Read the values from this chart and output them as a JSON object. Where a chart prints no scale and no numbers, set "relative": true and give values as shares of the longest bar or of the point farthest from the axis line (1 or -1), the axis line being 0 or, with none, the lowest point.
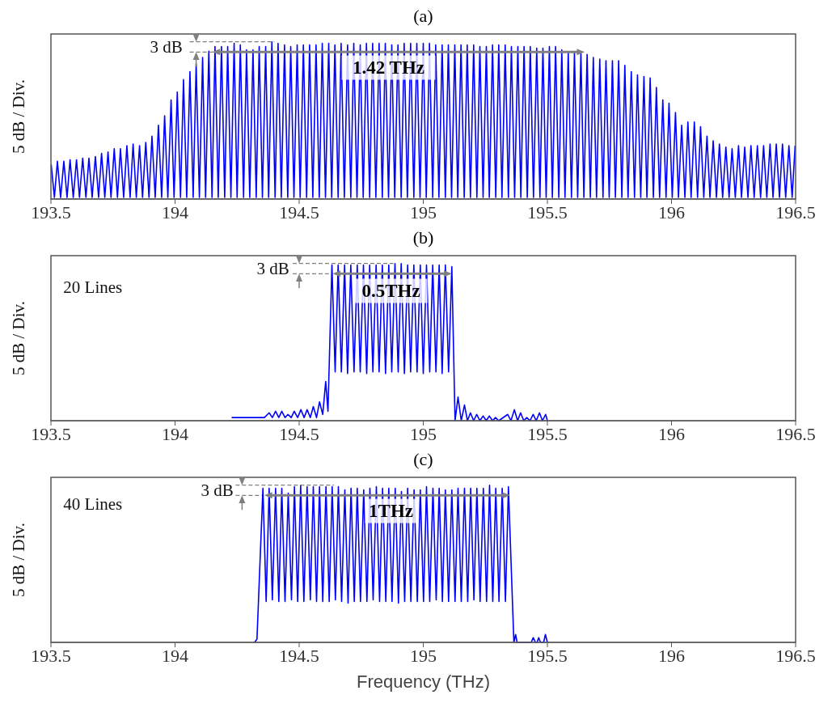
{
  "chart_data": [
    {
      "type": "line",
      "title": "(a)",
      "ylabel": "5 dB / Div.",
      "relative": true,
      "color": "#0000ff",
      "xlim": [
        193.5,
        196.5
      ],
      "xticks": [
        193.5,
        194,
        194.5,
        195,
        195.5,
        196,
        196.5
      ],
      "tick_labels": "x",
      "annotations": [
        "3 dB",
        "1.42 THz"
      ],
      "x": [
        193.501,
        193.514,
        193.526,
        193.539,
        193.552,
        193.565,
        193.577,
        193.59,
        193.603,
        193.615,
        193.628,
        193.641,
        193.653,
        193.666,
        193.679,
        193.692,
        193.704,
        193.717,
        193.73,
        193.742,
        193.755,
        193.768,
        193.78,
        193.793,
        193.806,
        193.819,
        193.831,
        193.844,
        193.857,
        193.869,
        193.882,
        193.895,
        193.907,
        193.92,
        193.933,
        193.946,
        193.958,
        193.971,
        193.984,
        193.996,
        194.009,
        194.022,
        194.034,
        194.047,
        194.06,
        194.073,
        194.085,
        194.098,
        194.111,
        194.123,
        194.136,
        194.149,
        194.161,
        194.174,
        194.187,
        194.2,
        194.212,
        194.225,
        194.238,
        194.25,
        194.263,
        194.276,
        194.288,
        194.301,
        194.314,
        194.327,
        194.339,
        194.352,
        194.365,
        194.377,
        194.39,
        194.403,
        194.415,
        194.428,
        194.441,
        194.454,
        194.466,
        194.479,
        194.492,
        194.504,
        194.517,
        194.53,
        194.542,
        194.555,
        194.568,
        194.581,
        194.593,
        194.606,
        194.619,
        194.631,
        194.644,
        194.657,
        194.669,
        194.682,
        194.695,
        194.708,
        194.72,
        194.733,
        194.746,
        194.758,
        194.771,
        194.784,
        194.796,
        194.809,
        194.822,
        194.835,
        194.847,
        194.86,
        194.873,
        194.885,
        194.898,
        194.911,
        194.923,
        194.936,
        194.949,
        194.962,
        194.974,
        194.987,
        195,
        195.012,
        195.025,
        195.038,
        195.05,
        195.063,
        195.076,
        195.089,
        195.101,
        195.114,
        195.127,
        195.139,
        195.152,
        195.165,
        195.177,
        195.19,
        195.203,
        195.216,
        195.228,
        195.241,
        195.254,
        195.266,
        195.279,
        195.292,
        195.304,
        195.317,
        195.33,
        195.343,
        195.355,
        195.368,
        195.381,
        195.393,
        195.406,
        195.419,
        195.431,
        195.444,
        195.457,
        195.47,
        195.482,
        195.495,
        195.508,
        195.52,
        195.533,
        195.546,
        195.558,
        195.571,
        195.584,
        195.597,
        195.609,
        195.622,
        195.635,
        195.647,
        195.66,
        195.673,
        195.685,
        195.698,
        195.711,
        195.724,
        195.736,
        195.749,
        195.762,
        195.774,
        195.787,
        195.8,
        195.812,
        195.825,
        195.838,
        195.851,
        195.863,
        195.876,
        195.889,
        195.901,
        195.914,
        195.927,
        195.939,
        195.952,
        195.965,
        195.978,
        195.99,
        196.003,
        196.016,
        196.028,
        196.041,
        196.054,
        196.066,
        196.079,
        196.092,
        196.105,
        196.117,
        196.13,
        196.143,
        196.155,
        196.168,
        196.181,
        196.193,
        196.206,
        196.219,
        196.232,
        196.244,
        196.257,
        196.27,
        196.282,
        196.295,
        196.308,
        196.32,
        196.333,
        196.346,
        196.359,
        196.371,
        196.384,
        196.397,
        196.409,
        196.422,
        196.435,
        196.447,
        196.46,
        196.473,
        196.486,
        196.498
      ],
      "values": [
        0.22,
        0.01,
        0.24,
        0.01,
        0.24,
        0.01,
        0.25,
        0.01,
        0.25,
        0.01,
        0.26,
        0.01,
        0.26,
        0.01,
        0.27,
        0.01,
        0.29,
        0.01,
        0.3,
        0.01,
        0.32,
        0.01,
        0.32,
        0.01,
        0.34,
        0.01,
        0.35,
        0.01,
        0.34,
        0.01,
        0.36,
        0.01,
        0.4,
        0.01,
        0.47,
        0.01,
        0.53,
        0.01,
        0.63,
        0.01,
        0.68,
        0.01,
        0.76,
        0.01,
        0.81,
        0.01,
        0.86,
        0.01,
        0.9,
        0.01,
        0.94,
        0.01,
        0.97,
        0.01,
        0.97,
        0.01,
        0.97,
        0.01,
        0.99,
        0.01,
        0.98,
        0.01,
        0.95,
        0.01,
        0.95,
        0.01,
        0.97,
        0.01,
        0.97,
        0.01,
        1,
        0.01,
        0.99,
        0.01,
        0.98,
        0.01,
        0.97,
        0.01,
        0.98,
        0.01,
        0.98,
        0.01,
        0.98,
        0.01,
        0.98,
        0.01,
        0.99,
        0.01,
        0.99,
        0.01,
        0.98,
        0.01,
        0.99,
        0.01,
        0.98,
        0.01,
        0.99,
        0.01,
        0.98,
        0.01,
        0.99,
        0.01,
        0.99,
        0.01,
        0.99,
        0.01,
        0.99,
        0.01,
        0.98,
        0.01,
        0.98,
        0.01,
        0.99,
        0.01,
        0.99,
        0.01,
        0.99,
        0.01,
        0.99,
        0.01,
        0.99,
        0.01,
        0.98,
        0.01,
        0.98,
        0.01,
        0.98,
        0.01,
        0.98,
        0.01,
        0.98,
        0.01,
        0.98,
        0.01,
        0.98,
        0.01,
        0.97,
        0.01,
        0.97,
        0.01,
        0.98,
        0.01,
        0.98,
        0.01,
        0.98,
        0.01,
        0.97,
        0.01,
        0.97,
        0.01,
        0.97,
        0.01,
        0.97,
        0.01,
        0.96,
        0.01,
        0.96,
        0.01,
        0.97,
        0.01,
        0.97,
        0.01,
        0.95,
        0.01,
        0.93,
        0.01,
        0.93,
        0.01,
        0.93,
        0.01,
        0.92,
        0.01,
        0.9,
        0.01,
        0.89,
        0.01,
        0.88,
        0.01,
        0.88,
        0.01,
        0.88,
        0.01,
        0.85,
        0.01,
        0.81,
        0.01,
        0.79,
        0.01,
        0.78,
        0.01,
        0.77,
        0.01,
        0.71,
        0.01,
        0.63,
        0.01,
        0.61,
        0.01,
        0.55,
        0.01,
        0.47,
        0.01,
        0.49,
        0.01,
        0.49,
        0.01,
        0.46,
        0.01,
        0.4,
        0.01,
        0.37,
        0.01,
        0.35,
        0.01,
        0.33,
        0.01,
        0.32,
        0.01,
        0.34,
        0.01,
        0.33,
        0.01,
        0.34,
        0.01,
        0.34,
        0.01,
        0.34,
        0.01,
        0.35,
        0.01,
        0.35,
        0.01,
        0.35,
        0.01,
        0.34,
        0.01,
        0.34
      ]
    },
    {
      "type": "line",
      "title": "(b)",
      "ylabel": "5 dB / Div.",
      "relative": true,
      "color": "#0000ff",
      "xlim": [
        193.5,
        196.5
      ],
      "xticks": [
        193.5,
        194,
        194.5,
        195,
        195.5,
        196,
        196.5
      ],
      "tick_labels": "x",
      "annotations": [
        "20 Lines",
        "3 dB",
        "0.5THz"
      ],
      "x": [
        194.228,
        194.36,
        194.379,
        194.392,
        194.405,
        194.418,
        194.43,
        194.443,
        194.455,
        194.468,
        194.48,
        194.494,
        194.507,
        194.52,
        194.532,
        194.545,
        194.557,
        194.57,
        194.582,
        194.595,
        194.607,
        194.616,
        194.632,
        194.645,
        194.657,
        194.67,
        194.683,
        194.695,
        194.708,
        194.721,
        194.734,
        194.746,
        194.759,
        194.772,
        194.784,
        194.797,
        194.81,
        194.822,
        194.835,
        194.848,
        194.861,
        194.873,
        194.886,
        194.899,
        194.911,
        194.924,
        194.937,
        194.949,
        194.962,
        194.975,
        194.988,
        195,
        195.013,
        195.026,
        195.038,
        195.051,
        195.064,
        195.076,
        195.089,
        195.102,
        195.115,
        195.128,
        195.14,
        195.153,
        195.166,
        195.178,
        195.19,
        195.203,
        195.215,
        195.228,
        195.241,
        195.254,
        195.266,
        195.279,
        195.291,
        195.304,
        195.34,
        195.353,
        195.367,
        195.38,
        195.392,
        195.405,
        195.417,
        195.43,
        195.443,
        195.455,
        195.468,
        195.48,
        195.493,
        195.5
      ],
      "values": [
        0.02,
        0.02,
        0.05,
        0.02,
        0.06,
        0.02,
        0.06,
        0.02,
        0.04,
        0.02,
        0.06,
        0.02,
        0.07,
        0.02,
        0.07,
        0.02,
        0.09,
        0.02,
        0.12,
        0.04,
        0.25,
        0.06,
        0.99,
        0.31,
        0.99,
        0.31,
        0.99,
        0.3,
        0.99,
        0.31,
        0.99,
        0.31,
        0.99,
        0.3,
        0.99,
        0.31,
        0.99,
        0.31,
        0.99,
        0.3,
        0.99,
        0.31,
        1,
        0.31,
        1,
        0.3,
        0.99,
        0.31,
        0.99,
        0.31,
        0.99,
        0.3,
        0.99,
        0.31,
        0.99,
        0.31,
        0.99,
        0.3,
        0.99,
        0.31,
        0.98,
        0,
        0.15,
        0,
        0.1,
        0,
        0.05,
        0,
        0.04,
        0,
        0.03,
        0,
        0.03,
        0,
        0.02,
        0,
        0.04,
        0,
        0.07,
        0,
        0.05,
        0,
        0.02,
        0,
        0.04,
        0,
        0.05,
        0,
        0.04,
        0
      ]
    },
    {
      "type": "line",
      "title": "(c)",
      "xlabel": "Frequency (THz)",
      "ylabel": "5 dB / Div.",
      "relative": true,
      "color": "#0000ff",
      "xlim": [
        193.5,
        196.5
      ],
      "xticks": [
        193.5,
        194,
        194.5,
        195,
        195.5,
        196,
        196.5
      ],
      "tick_labels": "x",
      "annotations": [
        "40 Lines",
        "3 dB",
        "1THz"
      ],
      "x": [
        194.32,
        194.33,
        194.354,
        194.367,
        194.379,
        194.392,
        194.405,
        194.418,
        194.43,
        194.443,
        194.456,
        194.469,
        194.481,
        194.494,
        194.506,
        194.519,
        194.532,
        194.545,
        194.557,
        194.57,
        194.582,
        194.595,
        194.608,
        194.621,
        194.633,
        194.646,
        194.658,
        194.671,
        194.684,
        194.697,
        194.709,
        194.722,
        194.734,
        194.747,
        194.76,
        194.773,
        194.785,
        194.798,
        194.811,
        194.824,
        194.836,
        194.849,
        194.861,
        194.874,
        194.887,
        194.9,
        194.912,
        194.925,
        194.937,
        194.95,
        194.963,
        194.976,
        194.988,
        195.001,
        195.013,
        195.026,
        195.039,
        195.052,
        195.064,
        195.077,
        195.089,
        195.102,
        195.115,
        195.128,
        195.14,
        195.153,
        195.166,
        195.179,
        195.191,
        195.204,
        195.216,
        195.229,
        195.242,
        195.255,
        195.267,
        195.28,
        195.292,
        195.305,
        195.318,
        195.331,
        195.343,
        195.365,
        195.372,
        195.378,
        195.435,
        195.443,
        195.452,
        195.458,
        195.465,
        195.472,
        195.485,
        195.492,
        195.5
      ],
      "values": [
        0,
        0.02,
        0.98,
        0.26,
        0.98,
        0.27,
        0.98,
        0.26,
        0.98,
        0.26,
        0.95,
        0.27,
        0.99,
        0.26,
        1,
        0.26,
        0.99,
        0.27,
        0.99,
        0.26,
        0.99,
        0.26,
        0.99,
        0.26,
        0.99,
        0.27,
        0.99,
        0.26,
        0.97,
        0.25,
        0.98,
        0.26,
        0.98,
        0.26,
        0.97,
        0.26,
        0.98,
        0.27,
        0.99,
        0.26,
        0.98,
        0.26,
        0.98,
        0.26,
        0.98,
        0.25,
        0.96,
        0.26,
        0.98,
        0.26,
        0.97,
        0.26,
        0.97,
        0.26,
        0.99,
        0.26,
        0.98,
        0.27,
        0.98,
        0.26,
        0.97,
        0.26,
        0.97,
        0.26,
        0.98,
        0.26,
        0.98,
        0.26,
        0.98,
        0.27,
        0.98,
        0.26,
        0.98,
        0.26,
        1,
        0.26,
        0.98,
        0.26,
        0.98,
        0.26,
        0.99,
        0,
        0.05,
        0,
        0,
        0.03,
        0,
        0,
        0.03,
        0,
        0,
        0.05,
        0
      ]
    }
  ]
}
